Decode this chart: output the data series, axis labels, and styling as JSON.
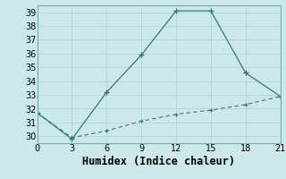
{
  "xlabel": "Humidex (Indice chaleur)",
  "line1_x": [
    0,
    3,
    6,
    9,
    12,
    15,
    18,
    21
  ],
  "line1_y": [
    31.7,
    29.8,
    33.2,
    35.9,
    39.1,
    39.1,
    34.6,
    32.9
  ],
  "line2_x": [
    0,
    3,
    6,
    9,
    12,
    15,
    18,
    21
  ],
  "line2_y": [
    31.7,
    29.9,
    30.4,
    31.1,
    31.6,
    31.9,
    32.3,
    32.9
  ],
  "line_color": "#2e7d6e",
  "bg_color": "#cce8e8",
  "grid_color": "#b8d8d8",
  "xlim": [
    0,
    21
  ],
  "ylim": [
    29.5,
    39.5
  ],
  "xticks": [
    0,
    3,
    6,
    9,
    12,
    15,
    18,
    21
  ],
  "yticks": [
    30,
    31,
    32,
    33,
    34,
    35,
    36,
    37,
    38,
    39
  ],
  "tick_fontsize": 7,
  "xlabel_fontsize": 8.5
}
